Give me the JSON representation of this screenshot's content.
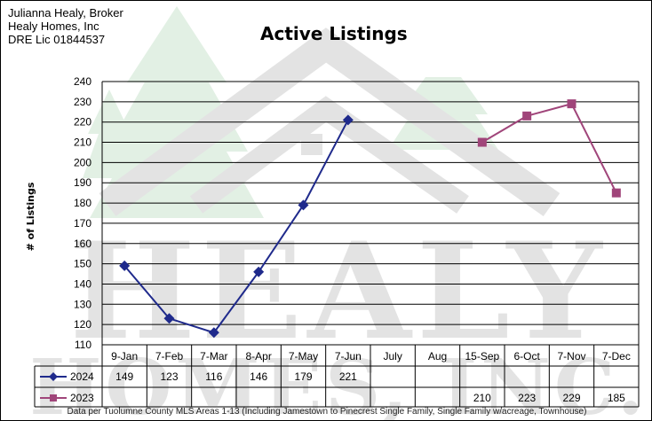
{
  "header": {
    "line1": "Julianna Healy, Broker",
    "line2": "Healy Homes, Inc",
    "line3": "DRE Lic 01844537"
  },
  "watermark": {
    "line1": "HEALY",
    "line2": "HOMES, INC."
  },
  "footnote": "Data per Tuolumne County MLS Areas 1-13 (Including Jamestown to Pinecrest Single Family, Single Family w/acreage, Townhouse)",
  "colors": {
    "series_2024": "#1f2a8c",
    "series_2023": "#a0457a",
    "watermark_gray": "#e3e3e3",
    "watermark_green": "#e2f0e4"
  },
  "chart_data": {
    "type": "line",
    "title": "Active Listings",
    "ylabel": "# of Listings",
    "xlabel": "",
    "ylim": [
      110,
      240
    ],
    "yticks": [
      110,
      120,
      130,
      140,
      150,
      160,
      170,
      180,
      190,
      200,
      210,
      220,
      230,
      240
    ],
    "grid": true,
    "categories": [
      "9-Jan",
      "7-Feb",
      "7-Mar",
      "8-Apr",
      "7-May",
      "7-Jun",
      "July",
      "Aug",
      "15-Sep",
      "6-Oct",
      "7-Nov",
      "7-Dec"
    ],
    "series": [
      {
        "name": "2024",
        "marker": "diamond",
        "values": [
          149,
          123,
          116,
          146,
          179,
          221,
          null,
          null,
          null,
          null,
          null,
          null
        ]
      },
      {
        "name": "2023",
        "marker": "square",
        "values": [
          null,
          null,
          null,
          null,
          null,
          null,
          null,
          null,
          210,
          223,
          229,
          185
        ]
      }
    ]
  }
}
